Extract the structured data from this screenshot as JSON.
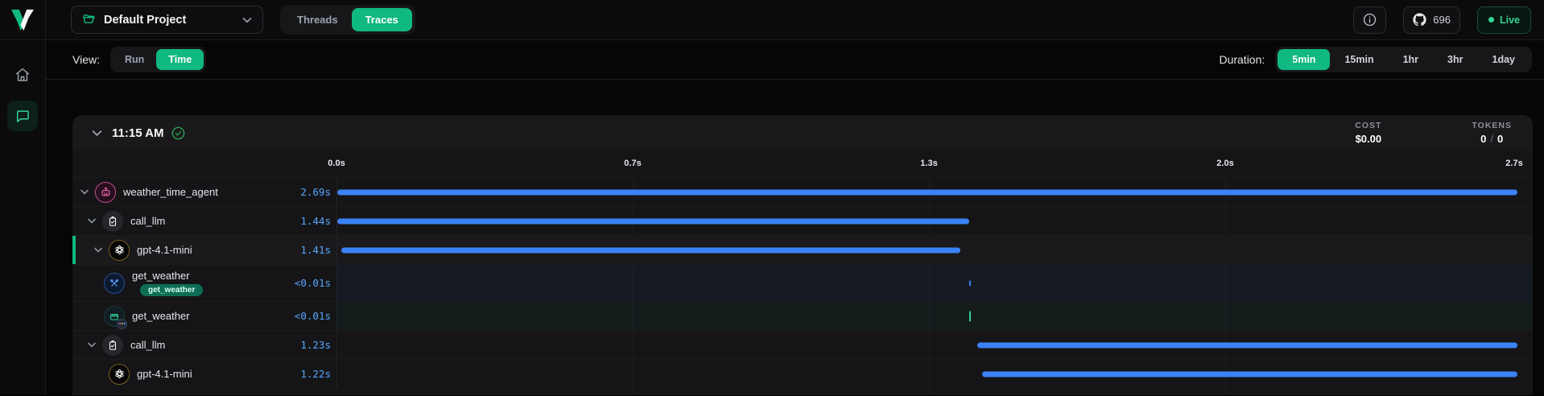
{
  "colors": {
    "accent": "#10b981",
    "bar_blue": "#3b82f6",
    "duration_text": "#58a6ff",
    "live_green": "#34d399",
    "badge_bg": "#0e6e55"
  },
  "header": {
    "logo_icon": "voltagent-v-logo",
    "project_selector": {
      "label": "Default Project",
      "icon": "folder-open-icon",
      "chevron": "chevron-down-icon"
    },
    "tabs": [
      {
        "label": "Threads",
        "active": false
      },
      {
        "label": "Traces",
        "active": true
      }
    ],
    "info_icon": "info-icon",
    "github": {
      "icon": "github-icon",
      "count": "696"
    },
    "live_label": "Live"
  },
  "sidebar": {
    "items": [
      {
        "icon": "home-icon",
        "active": false
      },
      {
        "icon": "chat-icon",
        "active": true
      }
    ]
  },
  "toolbar": {
    "view_label": "View:",
    "view_options": [
      {
        "label": "Run",
        "active": false
      },
      {
        "label": "Time",
        "active": true
      }
    ],
    "duration_label": "Duration:",
    "duration_options": [
      {
        "label": "5min",
        "active": true
      },
      {
        "label": "15min",
        "active": false
      },
      {
        "label": "1hr",
        "active": false
      },
      {
        "label": "3hr",
        "active": false
      },
      {
        "label": "1day",
        "active": false
      }
    ]
  },
  "trace_panel": {
    "time_label": "11:15 AM",
    "status_icon": "check-circle-icon",
    "cost_label": "COST",
    "cost_value": "$0.00",
    "tokens_label": "TOKENS",
    "tokens_in": "0",
    "tokens_sep": "/",
    "tokens_out": "0",
    "timeline": {
      "ticks": [
        "0.0s",
        "0.7s",
        "1.3s",
        "2.0s",
        "2.7s"
      ],
      "max_seconds": 2.7
    },
    "rows": [
      {
        "name": "weather_time_agent",
        "duration": "2.69s",
        "icon": "robot-icon",
        "level": 0,
        "bar": {
          "start": 0,
          "end": 2.69
        }
      },
      {
        "name": "call_llm",
        "duration": "1.44s",
        "icon": "clipboard-icon",
        "level": 1,
        "bar": {
          "start": 0,
          "end": 1.44
        }
      },
      {
        "name": "gpt-4.1-mini",
        "duration": "1.41s",
        "icon": "openai-icon",
        "level": 2,
        "selected": true,
        "bar": {
          "start": 0.01,
          "end": 1.42
        }
      },
      {
        "name": "get_weather",
        "duration": "<0.01s",
        "icon": "tools-icon",
        "level": 3,
        "badge": "get_weather",
        "bar": {
          "start": 1.44,
          "end": 1.441
        }
      },
      {
        "name": "get_weather",
        "duration": "<0.01s",
        "icon": "retriever-icon",
        "level": 3,
        "bar": {
          "start": 1.44,
          "end": 1.441,
          "color": "#34d399"
        }
      },
      {
        "name": "call_llm",
        "duration": "1.23s",
        "icon": "clipboard-icon",
        "level": 1,
        "bar": {
          "start": 1.46,
          "end": 2.69
        }
      },
      {
        "name": "gpt-4.1-mini",
        "duration": "1.22s",
        "icon": "openai-icon",
        "level": 2,
        "bar": {
          "start": 1.47,
          "end": 2.69
        }
      }
    ]
  }
}
